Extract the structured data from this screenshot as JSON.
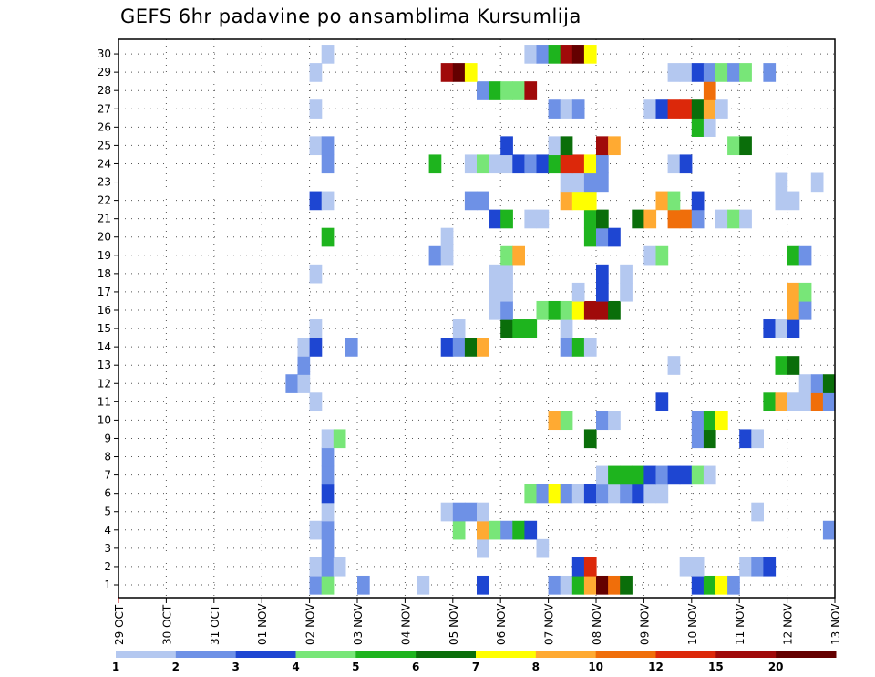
{
  "chart_data": {
    "type": "heatmap",
    "title": "GEFS 6hr padavine po ansamblima Kursumlija",
    "x_ticks": [
      "29 OCT",
      "30 OCT",
      "31 OCT",
      "01 NOV",
      "02 NOV",
      "03 NOV",
      "04 NOV",
      "05 NOV",
      "06 NOV",
      "07 NOV",
      "08 NOV",
      "09 NOV",
      "10 NOV",
      "11 NOV",
      "12 NOV",
      "13 NOV"
    ],
    "y_ticks": [
      "1",
      "2",
      "3",
      "4",
      "5",
      "6",
      "7",
      "8",
      "9",
      "10",
      "11",
      "12",
      "13",
      "14",
      "15",
      "16",
      "17",
      "18",
      "19",
      "20",
      "21",
      "22",
      "23",
      "24",
      "25",
      "26",
      "27",
      "28",
      "29",
      "30"
    ],
    "x_steps": 60,
    "grid": true,
    "legend": {
      "placement": "bottom",
      "colors": [
        "#b4c8f0",
        "#6e91e6",
        "#1e46d2",
        "#78e678",
        "#1eb41e",
        "#0a6e0a",
        "#ffff00",
        "#ffaa32",
        "#f06e0a",
        "#dc280a",
        "#a00a0a",
        "#640000"
      ],
      "labels": [
        "1",
        "2",
        "3",
        "4",
        "5",
        "6",
        "7",
        "8",
        "10",
        "12",
        "15",
        "20"
      ]
    },
    "cells": [
      [
        1,
        16,
        2
      ],
      [
        1,
        17,
        4
      ],
      [
        1,
        20,
        2
      ],
      [
        1,
        25,
        1
      ],
      [
        1,
        30,
        3
      ],
      [
        1,
        36,
        2
      ],
      [
        1,
        37,
        1
      ],
      [
        1,
        38,
        5
      ],
      [
        1,
        39,
        8
      ],
      [
        1,
        40,
        12
      ],
      [
        1,
        41,
        9
      ],
      [
        1,
        42,
        6
      ],
      [
        1,
        48,
        3
      ],
      [
        1,
        49,
        5
      ],
      [
        1,
        50,
        7
      ],
      [
        1,
        51,
        2
      ],
      [
        2,
        16,
        1
      ],
      [
        2,
        17,
        2
      ],
      [
        2,
        18,
        1
      ],
      [
        2,
        38,
        3
      ],
      [
        2,
        39,
        10
      ],
      [
        2,
        47,
        1
      ],
      [
        2,
        48,
        1
      ],
      [
        2,
        52,
        1
      ],
      [
        2,
        53,
        2
      ],
      [
        2,
        54,
        3
      ],
      [
        3,
        17,
        2
      ],
      [
        3,
        30,
        1
      ],
      [
        3,
        35,
        1
      ],
      [
        4,
        16,
        1
      ],
      [
        4,
        17,
        2
      ],
      [
        4,
        28,
        4
      ],
      [
        4,
        30,
        8
      ],
      [
        4,
        31,
        4
      ],
      [
        4,
        32,
        2
      ],
      [
        4,
        33,
        5
      ],
      [
        4,
        34,
        3
      ],
      [
        4,
        59,
        2
      ],
      [
        5,
        17,
        1
      ],
      [
        5,
        27,
        1
      ],
      [
        5,
        28,
        2
      ],
      [
        5,
        29,
        2
      ],
      [
        5,
        30,
        1
      ],
      [
        5,
        53,
        1
      ],
      [
        6,
        17,
        3
      ],
      [
        6,
        34,
        4
      ],
      [
        6,
        35,
        2
      ],
      [
        6,
        36,
        7
      ],
      [
        6,
        37,
        2
      ],
      [
        6,
        38,
        1
      ],
      [
        6,
        39,
        3
      ],
      [
        6,
        40,
        2
      ],
      [
        6,
        41,
        1
      ],
      [
        6,
        42,
        2
      ],
      [
        6,
        43,
        3
      ],
      [
        6,
        44,
        1
      ],
      [
        6,
        45,
        1
      ],
      [
        7,
        17,
        2
      ],
      [
        7,
        40,
        1
      ],
      [
        7,
        41,
        5
      ],
      [
        7,
        42,
        5
      ],
      [
        7,
        43,
        5
      ],
      [
        7,
        44,
        3
      ],
      [
        7,
        45,
        2
      ],
      [
        7,
        46,
        3
      ],
      [
        7,
        47,
        3
      ],
      [
        7,
        48,
        4
      ],
      [
        7,
        49,
        1
      ],
      [
        8,
        17,
        2
      ],
      [
        9,
        17,
        1
      ],
      [
        9,
        18,
        4
      ],
      [
        9,
        39,
        6
      ],
      [
        9,
        48,
        2
      ],
      [
        9,
        49,
        6
      ],
      [
        9,
        52,
        3
      ],
      [
        9,
        53,
        1
      ],
      [
        10,
        36,
        8
      ],
      [
        10,
        37,
        4
      ],
      [
        10,
        40,
        2
      ],
      [
        10,
        41,
        1
      ],
      [
        10,
        48,
        2
      ],
      [
        10,
        49,
        5
      ],
      [
        10,
        50,
        7
      ],
      [
        11,
        16,
        1
      ],
      [
        11,
        45,
        3
      ],
      [
        11,
        54,
        5
      ],
      [
        11,
        55,
        8
      ],
      [
        11,
        56,
        1
      ],
      [
        11,
        57,
        1
      ],
      [
        11,
        58,
        9
      ],
      [
        11,
        59,
        2
      ],
      [
        12,
        14,
        2
      ],
      [
        12,
        15,
        1
      ],
      [
        12,
        57,
        1
      ],
      [
        12,
        58,
        2
      ],
      [
        12,
        59,
        6
      ],
      [
        13,
        15,
        2
      ],
      [
        13,
        46,
        1
      ],
      [
        13,
        55,
        5
      ],
      [
        13,
        56,
        6
      ],
      [
        14,
        15,
        1
      ],
      [
        14,
        16,
        3
      ],
      [
        14,
        19,
        2
      ],
      [
        14,
        27,
        3
      ],
      [
        14,
        28,
        2
      ],
      [
        14,
        29,
        6
      ],
      [
        14,
        30,
        8
      ],
      [
        14,
        37,
        2
      ],
      [
        14,
        38,
        5
      ],
      [
        14,
        39,
        1
      ],
      [
        15,
        16,
        1
      ],
      [
        15,
        28,
        1
      ],
      [
        15,
        32,
        6
      ],
      [
        15,
        33,
        5
      ],
      [
        15,
        34,
        5
      ],
      [
        15,
        37,
        1
      ],
      [
        15,
        54,
        3
      ],
      [
        15,
        55,
        1
      ],
      [
        15,
        56,
        3
      ],
      [
        16,
        31,
        1
      ],
      [
        16,
        32,
        2
      ],
      [
        16,
        35,
        4
      ],
      [
        16,
        36,
        5
      ],
      [
        16,
        37,
        4
      ],
      [
        16,
        38,
        7
      ],
      [
        16,
        39,
        11
      ],
      [
        16,
        40,
        11
      ],
      [
        16,
        41,
        6
      ],
      [
        16,
        56,
        8
      ],
      [
        16,
        57,
        2
      ],
      [
        17,
        31,
        1
      ],
      [
        17,
        32,
        1
      ],
      [
        17,
        38,
        1
      ],
      [
        17,
        40,
        3
      ],
      [
        17,
        42,
        1
      ],
      [
        17,
        56,
        8
      ],
      [
        17,
        57,
        4
      ],
      [
        18,
        16,
        1
      ],
      [
        18,
        31,
        1
      ],
      [
        18,
        32,
        1
      ],
      [
        18,
        40,
        3
      ],
      [
        18,
        42,
        1
      ],
      [
        19,
        26,
        2
      ],
      [
        19,
        27,
        1
      ],
      [
        19,
        32,
        4
      ],
      [
        19,
        33,
        8
      ],
      [
        19,
        44,
        1
      ],
      [
        19,
        45,
        4
      ],
      [
        19,
        56,
        5
      ],
      [
        19,
        57,
        2
      ],
      [
        20,
        17,
        5
      ],
      [
        20,
        27,
        1
      ],
      [
        20,
        39,
        5
      ],
      [
        20,
        40,
        2
      ],
      [
        20,
        41,
        3
      ],
      [
        21,
        31,
        3
      ],
      [
        21,
        32,
        5
      ],
      [
        21,
        34,
        1
      ],
      [
        21,
        35,
        1
      ],
      [
        21,
        39,
        5
      ],
      [
        21,
        40,
        6
      ],
      [
        21,
        43,
        6
      ],
      [
        21,
        44,
        8
      ],
      [
        21,
        46,
        9
      ],
      [
        21,
        47,
        9
      ],
      [
        21,
        48,
        2
      ],
      [
        21,
        50,
        1
      ],
      [
        21,
        51,
        4
      ],
      [
        21,
        52,
        1
      ],
      [
        22,
        16,
        3
      ],
      [
        22,
        17,
        1
      ],
      [
        22,
        29,
        2
      ],
      [
        22,
        30,
        2
      ],
      [
        22,
        37,
        8
      ],
      [
        22,
        38,
        7
      ],
      [
        22,
        39,
        7
      ],
      [
        22,
        45,
        8
      ],
      [
        22,
        46,
        4
      ],
      [
        22,
        48,
        3
      ],
      [
        22,
        55,
        1
      ],
      [
        22,
        56,
        1
      ],
      [
        23,
        37,
        1
      ],
      [
        23,
        38,
        1
      ],
      [
        23,
        39,
        2
      ],
      [
        23,
        40,
        2
      ],
      [
        23,
        55,
        1
      ],
      [
        23,
        58,
        1
      ],
      [
        24,
        17,
        2
      ],
      [
        24,
        26,
        5
      ],
      [
        24,
        29,
        1
      ],
      [
        24,
        30,
        4
      ],
      [
        24,
        31,
        1
      ],
      [
        24,
        32,
        1
      ],
      [
        24,
        33,
        3
      ],
      [
        24,
        34,
        2
      ],
      [
        24,
        35,
        3
      ],
      [
        24,
        36,
        5
      ],
      [
        24,
        37,
        10
      ],
      [
        24,
        38,
        10
      ],
      [
        24,
        39,
        7
      ],
      [
        24,
        40,
        2
      ],
      [
        24,
        46,
        1
      ],
      [
        24,
        47,
        3
      ],
      [
        25,
        16,
        1
      ],
      [
        25,
        17,
        2
      ],
      [
        25,
        32,
        3
      ],
      [
        25,
        36,
        1
      ],
      [
        25,
        37,
        6
      ],
      [
        25,
        40,
        11
      ],
      [
        25,
        41,
        8
      ],
      [
        25,
        51,
        4
      ],
      [
        25,
        52,
        6
      ],
      [
        26,
        48,
        5
      ],
      [
        26,
        49,
        1
      ],
      [
        27,
        16,
        1
      ],
      [
        27,
        36,
        2
      ],
      [
        27,
        37,
        1
      ],
      [
        27,
        38,
        2
      ],
      [
        27,
        44,
        1
      ],
      [
        27,
        45,
        3
      ],
      [
        27,
        46,
        10
      ],
      [
        27,
        47,
        10
      ],
      [
        27,
        48,
        6
      ],
      [
        27,
        49,
        8
      ],
      [
        27,
        50,
        1
      ],
      [
        28,
        30,
        2
      ],
      [
        28,
        31,
        5
      ],
      [
        28,
        32,
        4
      ],
      [
        28,
        33,
        4
      ],
      [
        28,
        34,
        11
      ],
      [
        28,
        49,
        9
      ],
      [
        29,
        16,
        1
      ],
      [
        29,
        27,
        11
      ],
      [
        29,
        28,
        12
      ],
      [
        29,
        29,
        7
      ],
      [
        29,
        46,
        1
      ],
      [
        29,
        47,
        1
      ],
      [
        29,
        48,
        3
      ],
      [
        29,
        49,
        2
      ],
      [
        29,
        50,
        4
      ],
      [
        29,
        51,
        2
      ],
      [
        29,
        52,
        4
      ],
      [
        29,
        54,
        2
      ],
      [
        30,
        17,
        1
      ],
      [
        30,
        34,
        1
      ],
      [
        30,
        35,
        2
      ],
      [
        30,
        36,
        5
      ],
      [
        30,
        37,
        11
      ],
      [
        30,
        38,
        12
      ],
      [
        30,
        39,
        7
      ]
    ]
  }
}
